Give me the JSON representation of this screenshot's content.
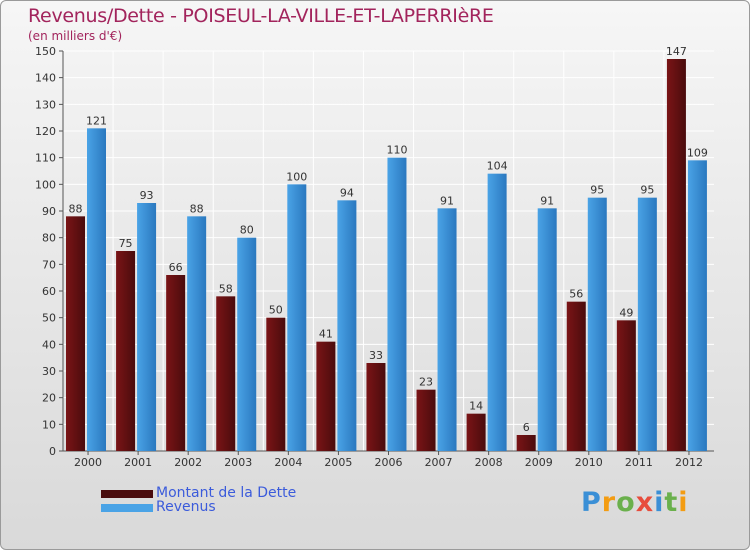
{
  "title": "Revenus/Dette - POISEUL-LA-VILLE-ET-LAPERRIèRE",
  "subtitle": "(en milliers d'€)",
  "logo": {
    "text": "Proxiti",
    "letters": [
      "P",
      "r",
      "o",
      "x",
      "i",
      "t",
      "i"
    ],
    "colors": [
      "#3a8fd6",
      "#f39c12",
      "#6ab04c",
      "#e74c3c",
      "#3a8fd6",
      "#6ab04c",
      "#f39c12"
    ]
  },
  "colors": {
    "dette": "#7a1416",
    "dette_dark": "#4a0c0d",
    "revenus": "#4aa3e6",
    "revenus_dark": "#2a78bf"
  },
  "chart_data": {
    "type": "bar",
    "categories": [
      "2000",
      "2001",
      "2002",
      "2003",
      "2004",
      "2005",
      "2006",
      "2007",
      "2008",
      "2009",
      "2010",
      "2011",
      "2012"
    ],
    "series": [
      {
        "name": "Montant de la Dette",
        "values": [
          88,
          75,
          66,
          58,
          50,
          41,
          33,
          23,
          14,
          6,
          56,
          49,
          147
        ]
      },
      {
        "name": "Revenus",
        "values": [
          121,
          93,
          88,
          80,
          100,
          94,
          110,
          91,
          104,
          91,
          95,
          95,
          109
        ]
      }
    ],
    "yticks": [
      "0",
      "10",
      "20",
      "30",
      "40",
      "50",
      "60",
      "70",
      "80",
      "90",
      "100",
      "110",
      "120",
      "130",
      "140",
      "150"
    ],
    "ylim": [
      0,
      150
    ],
    "grid": true,
    "legend": "bottom-left"
  }
}
